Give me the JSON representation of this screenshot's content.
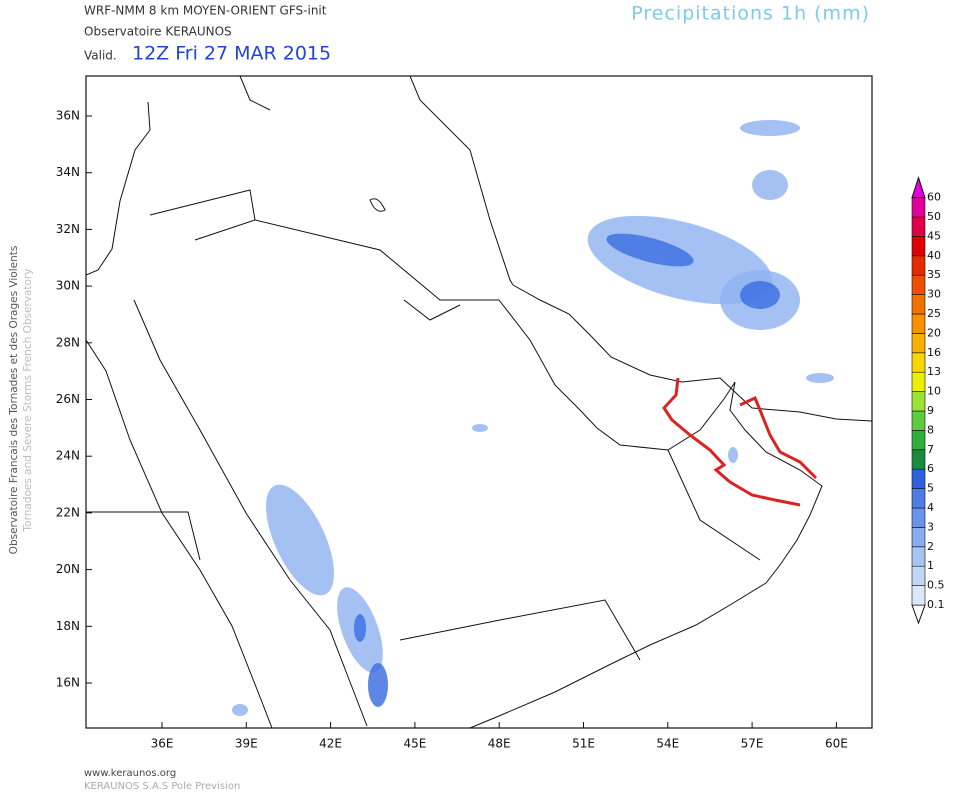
{
  "header": {
    "model": "WRF-NMM 8 km MOYEN-ORIENT  GFS-init",
    "observatory": "Observatoire KERAUNOS",
    "valid_label": "Valid.",
    "valid_time": "12Z Fri 27 MAR 2015",
    "title": "Precipitations 1h (mm)"
  },
  "side_text": {
    "french": "Observatoire Francais des Tornades et des Orages Violents",
    "english": "Tornadoes and Severe Storms French Observatory"
  },
  "map": {
    "lat_labels": [
      "36N",
      "34N",
      "32N",
      "30N",
      "28N",
      "26N",
      "24N",
      "22N",
      "20N",
      "18N",
      "16N"
    ],
    "lon_labels": [
      "36E",
      "39E",
      "42E",
      "45E",
      "48E",
      "51E",
      "54E",
      "57E",
      "60E"
    ]
  },
  "colorbar": {
    "levels": [
      "0.1",
      "0.5",
      "1",
      "2",
      "3",
      "4",
      "5",
      "6",
      "7",
      "8",
      "9",
      "10",
      "13",
      "16",
      "20",
      "25",
      "30",
      "35",
      "40",
      "45",
      "50",
      "60"
    ],
    "colors": [
      "#dbe8fa",
      "#c2d6f6",
      "#a8c4f2",
      "#88acee",
      "#6a94ea",
      "#4c7ce4",
      "#2e62dc",
      "#1a8a3e",
      "#2eae3a",
      "#5ccc3c",
      "#9ae236",
      "#eaf000",
      "#f8d400",
      "#f8b000",
      "#f89000",
      "#f07000",
      "#ec5000",
      "#e82a00",
      "#e00000",
      "#e00048",
      "#e0009a",
      "#e000e0"
    ]
  },
  "footer": {
    "url": "www.keraunos.org",
    "credit": "KERAUNOS S.A.S Pole Prevision"
  }
}
